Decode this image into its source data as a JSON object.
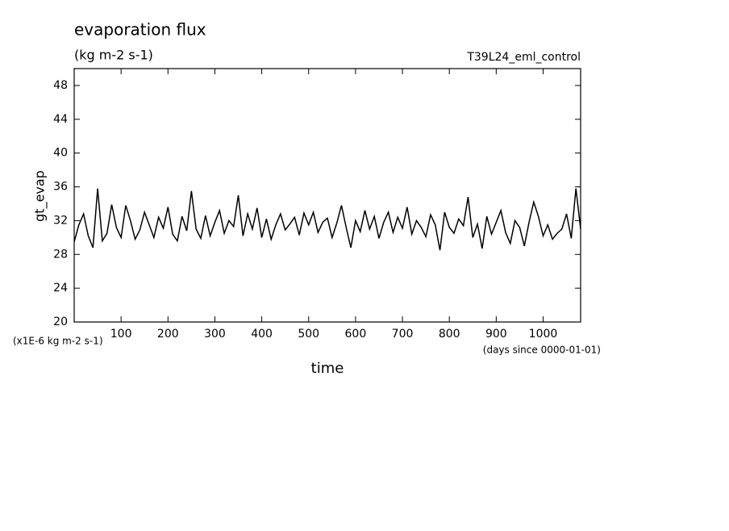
{
  "chart_data": {
    "type": "line",
    "title": "evaporation flux",
    "subtitle": "(kg m-2 s-1)",
    "run_label": "T39L24_eml_control",
    "y_label": "gt_evap",
    "y_units": "(x1E-6 kg m-2 s-1)",
    "x_label": "time",
    "x_units": "(days since 0000-01-01)",
    "x": [
      0,
      10,
      20,
      30,
      40,
      50,
      60,
      70,
      80,
      90,
      100,
      110,
      120,
      130,
      140,
      150,
      160,
      170,
      180,
      190,
      200,
      210,
      220,
      230,
      240,
      250,
      260,
      270,
      280,
      290,
      300,
      310,
      320,
      330,
      340,
      350,
      360,
      370,
      380,
      390,
      400,
      410,
      420,
      430,
      440,
      450,
      460,
      470,
      480,
      490,
      500,
      510,
      520,
      530,
      540,
      550,
      560,
      570,
      580,
      590,
      600,
      610,
      620,
      630,
      640,
      650,
      660,
      670,
      680,
      690,
      700,
      710,
      720,
      730,
      740,
      750,
      760,
      770,
      780,
      790,
      800,
      810,
      820,
      830,
      840,
      850,
      860,
      870,
      880,
      890,
      900,
      910,
      920,
      930,
      940,
      950,
      960,
      970,
      980,
      990,
      1000,
      1010,
      1020,
      1030,
      1040,
      1050,
      1060,
      1070,
      1080
    ],
    "series": [
      {
        "name": "gt_evap",
        "color": "#000000",
        "values": [
          29.5,
          31.5,
          32.8,
          30.2,
          28.8,
          35.8,
          29.6,
          30.5,
          33.9,
          31.2,
          30.0,
          33.8,
          32.0,
          29.8,
          30.9,
          33.0,
          31.5,
          30.0,
          32.4,
          31.1,
          33.6,
          30.4,
          29.6,
          32.5,
          30.8,
          35.5,
          31.0,
          29.9,
          32.6,
          30.2,
          31.8,
          33.2,
          30.5,
          32.0,
          31.3,
          35.0,
          30.2,
          32.8,
          31.0,
          33.5,
          30.0,
          32.2,
          29.8,
          31.5,
          32.8,
          30.9,
          31.6,
          32.4,
          30.3,
          32.9,
          31.5,
          33.0,
          30.6,
          31.8,
          32.3,
          30.0,
          31.7,
          33.8,
          31.2,
          28.8,
          32.0,
          30.7,
          33.2,
          31.0,
          32.5,
          29.9,
          31.8,
          33.0,
          30.6,
          32.4,
          31.1,
          33.6,
          30.4,
          32.0,
          31.2,
          30.1,
          32.7,
          31.5,
          28.5,
          33.0,
          31.2,
          30.5,
          32.2,
          31.4,
          34.8,
          30.0,
          31.6,
          28.7,
          32.5,
          30.4,
          31.8,
          33.2,
          30.6,
          29.3,
          32.0,
          31.2,
          29.0,
          31.8,
          34.2,
          32.5,
          30.2,
          31.5,
          29.8,
          30.5,
          31.0,
          32.8,
          29.9,
          35.8,
          31.0
        ]
      }
    ],
    "xlim": [
      0,
      1080
    ],
    "xticks": [
      100,
      200,
      300,
      400,
      500,
      600,
      700,
      800,
      900,
      1000
    ],
    "ylim": [
      20,
      50
    ],
    "yticks": [
      20,
      24,
      28,
      32,
      36,
      40,
      44,
      48
    ]
  }
}
